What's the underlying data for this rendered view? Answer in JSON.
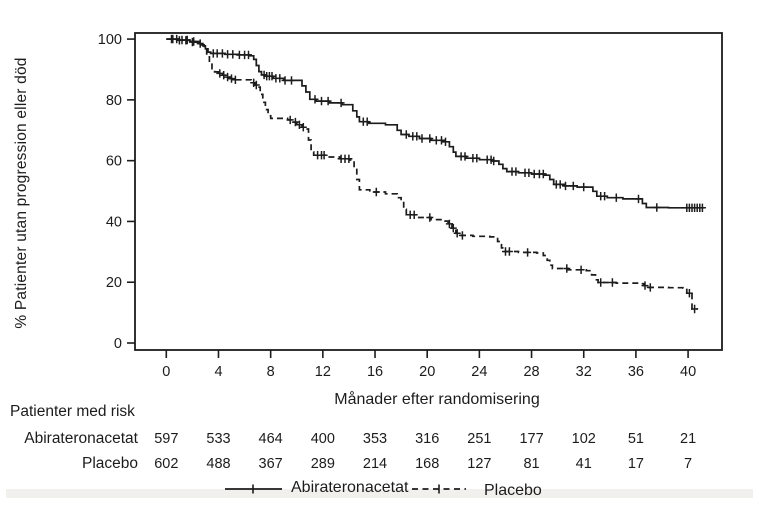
{
  "colors": {
    "curve": "#1c1c1c",
    "text": "#1c1c1c",
    "background": "#ffffff",
    "bottom_strip": "#f2f0ed"
  },
  "chart_data": {
    "type": "line",
    "subtype": "kaplan_meier_step",
    "title": "",
    "xlabel": "Månader efter randomisering",
    "ylabel": "% Patienter utan progression eller död",
    "xlim": [
      -2.4,
      42.6
    ],
    "ylim": [
      -2.3,
      102
    ],
    "x_ticks": [
      0,
      4,
      8,
      12,
      16,
      20,
      24,
      28,
      32,
      36,
      40
    ],
    "y_ticks": [
      0,
      20,
      40,
      60,
      80,
      100
    ],
    "grid": false,
    "legend_position": "bottom",
    "series": [
      {
        "name": "Abirateronacetat",
        "style": "solid",
        "color": "#1c1c1c",
        "points": [
          [
            0,
            100
          ],
          [
            0.9,
            99.7
          ],
          [
            1.8,
            99.2
          ],
          [
            2.5,
            98.5
          ],
          [
            2.8,
            97.8
          ],
          [
            3.0,
            96.8
          ],
          [
            3.2,
            95.7
          ],
          [
            3.4,
            95.3
          ],
          [
            4.5,
            95.0
          ],
          [
            5.5,
            94.8
          ],
          [
            6.4,
            94.5
          ],
          [
            6.7,
            93.3
          ],
          [
            6.9,
            91.3
          ],
          [
            7.1,
            89.3
          ],
          [
            7.3,
            88.2
          ],
          [
            7.6,
            87.8
          ],
          [
            8.2,
            87.1
          ],
          [
            9.0,
            86.4
          ],
          [
            10.4,
            84.6
          ],
          [
            10.7,
            82.6
          ],
          [
            11.0,
            80.2
          ],
          [
            11.5,
            79.6
          ],
          [
            12.5,
            79.0
          ],
          [
            13.5,
            78.4
          ],
          [
            14.3,
            76.4
          ],
          [
            14.6,
            74.4
          ],
          [
            14.8,
            72.8
          ],
          [
            15.5,
            72.3
          ],
          [
            16.8,
            71.8
          ],
          [
            17.7,
            70.0
          ],
          [
            18.0,
            68.6
          ],
          [
            18.6,
            68.0
          ],
          [
            19.4,
            67.3
          ],
          [
            20.3,
            66.7
          ],
          [
            21.2,
            66.2
          ],
          [
            21.7,
            64.6
          ],
          [
            22.0,
            62.8
          ],
          [
            22.2,
            61.4
          ],
          [
            23.0,
            60.8
          ],
          [
            24.0,
            60.3
          ],
          [
            25.0,
            59.9
          ],
          [
            25.5,
            58.8
          ],
          [
            25.8,
            57.4
          ],
          [
            26.1,
            56.4
          ],
          [
            27.0,
            56.0
          ],
          [
            28.0,
            55.6
          ],
          [
            29.0,
            55.2
          ],
          [
            29.4,
            53.8
          ],
          [
            29.7,
            52.2
          ],
          [
            30.5,
            51.7
          ],
          [
            31.5,
            51.3
          ],
          [
            32.7,
            49.9
          ],
          [
            33.0,
            48.3
          ],
          [
            33.8,
            47.8
          ],
          [
            35.0,
            47.4
          ],
          [
            36.5,
            45.9
          ],
          [
            36.8,
            44.6
          ],
          [
            38.5,
            44.5
          ],
          [
            41.2,
            44.5
          ]
        ],
        "censor_times": [
          0.4,
          0.8,
          1.2,
          1.6,
          2.1,
          2.6,
          3.6,
          3.9,
          4.3,
          4.7,
          5.1,
          5.6,
          6.0,
          6.3,
          7.5,
          7.7,
          7.9,
          8.1,
          8.4,
          8.7,
          9.1,
          9.6,
          11.4,
          11.9,
          12.4,
          13.4,
          15.1,
          15.4,
          18.4,
          18.9,
          19.2,
          19.6,
          20.2,
          20.7,
          21.1,
          21.4,
          22.6,
          22.9,
          23.5,
          23.8,
          24.6,
          24.9,
          25.1,
          26.5,
          26.8,
          27.5,
          27.8,
          28.2,
          28.6,
          28.9,
          29.9,
          30.2,
          30.6,
          31.2,
          32.0,
          33.3,
          33.6,
          34.5,
          36.2,
          37.6,
          39.9,
          40.1,
          40.3,
          40.5,
          40.7,
          40.9,
          41.1
        ]
      },
      {
        "name": "Placebo",
        "style": "dashed",
        "color": "#1c1c1c",
        "points": [
          [
            0,
            100
          ],
          [
            0.9,
            99.6
          ],
          [
            1.8,
            99.0
          ],
          [
            2.5,
            98.1
          ],
          [
            2.9,
            96.8
          ],
          [
            3.1,
            94.6
          ],
          [
            3.3,
            92.2
          ],
          [
            3.5,
            90.3
          ],
          [
            3.7,
            89.2
          ],
          [
            4.0,
            88.7
          ],
          [
            4.3,
            88.1
          ],
          [
            4.6,
            87.5
          ],
          [
            4.9,
            87.0
          ],
          [
            5.1,
            86.6
          ],
          [
            6.5,
            85.6
          ],
          [
            6.8,
            84.9
          ],
          [
            7.0,
            84.2
          ],
          [
            7.2,
            81.8
          ],
          [
            7.4,
            79.2
          ],
          [
            7.6,
            76.8
          ],
          [
            7.8,
            74.8
          ],
          [
            8.0,
            73.9
          ],
          [
            9.3,
            73.4
          ],
          [
            9.6,
            72.7
          ],
          [
            10.0,
            71.8
          ],
          [
            10.4,
            71.0
          ],
          [
            10.7,
            70.4
          ],
          [
            10.9,
            66.8
          ],
          [
            11.1,
            62.9
          ],
          [
            11.3,
            61.8
          ],
          [
            12.2,
            61.2
          ],
          [
            13.3,
            60.6
          ],
          [
            14.1,
            60.2
          ],
          [
            14.4,
            57.8
          ],
          [
            14.6,
            53.8
          ],
          [
            14.8,
            50.4
          ],
          [
            15.6,
            49.7
          ],
          [
            16.8,
            49.1
          ],
          [
            17.7,
            47.8
          ],
          [
            18.0,
            46.2
          ],
          [
            18.2,
            44.0
          ],
          [
            18.4,
            42.2
          ],
          [
            19.2,
            41.3
          ],
          [
            20.3,
            40.6
          ],
          [
            21.3,
            40.1
          ],
          [
            21.6,
            39.2
          ],
          [
            21.9,
            37.8
          ],
          [
            22.2,
            36.1
          ],
          [
            22.4,
            35.4
          ],
          [
            23.5,
            35.1
          ],
          [
            24.8,
            34.9
          ],
          [
            25.4,
            33.4
          ],
          [
            25.7,
            31.3
          ],
          [
            25.9,
            30.1
          ],
          [
            27.0,
            29.8
          ],
          [
            28.4,
            29.6
          ],
          [
            28.9,
            28.8
          ],
          [
            29.2,
            27.2
          ],
          [
            29.4,
            25.6
          ],
          [
            29.6,
            24.5
          ],
          [
            30.8,
            24.1
          ],
          [
            32.2,
            23.8
          ],
          [
            32.6,
            22.4
          ],
          [
            32.9,
            20.8
          ],
          [
            33.1,
            19.9
          ],
          [
            34.5,
            19.7
          ],
          [
            36.3,
            19.5
          ],
          [
            36.6,
            18.9
          ],
          [
            36.9,
            18.3
          ],
          [
            38.5,
            18.2
          ],
          [
            39.6,
            18.1
          ],
          [
            39.9,
            16.4
          ],
          [
            40.3,
            11.2
          ],
          [
            40.7,
            11.0
          ]
        ],
        "censor_times": [
          0.5,
          1.0,
          1.5,
          2.0,
          4.1,
          4.4,
          4.7,
          5.0,
          5.3,
          6.7,
          6.9,
          9.5,
          9.9,
          10.2,
          10.5,
          11.6,
          11.9,
          12.1,
          13.4,
          13.7,
          14.0,
          16.1,
          18.7,
          19.0,
          20.2,
          21.7,
          22.0,
          22.3,
          22.7,
          26.0,
          26.3,
          27.7,
          30.7,
          31.8,
          33.3,
          34.2,
          36.7,
          37.1,
          40.1,
          40.5
        ]
      }
    ]
  },
  "risk_table": {
    "title": "Patienter med risk",
    "time_points": [
      0,
      4,
      8,
      12,
      16,
      20,
      24,
      28,
      32,
      36,
      40
    ],
    "rows": [
      {
        "label": "Abirateronacetat",
        "counts": [
          597,
          533,
          464,
          400,
          353,
          316,
          251,
          177,
          102,
          51,
          21
        ]
      },
      {
        "label": "Placebo",
        "counts": [
          602,
          488,
          367,
          289,
          214,
          168,
          127,
          81,
          41,
          17,
          7
        ]
      }
    ]
  },
  "legend": {
    "items": [
      {
        "label": "Abirateronacetat",
        "style": "solid"
      },
      {
        "label": "Placebo",
        "style": "dashed"
      }
    ]
  }
}
